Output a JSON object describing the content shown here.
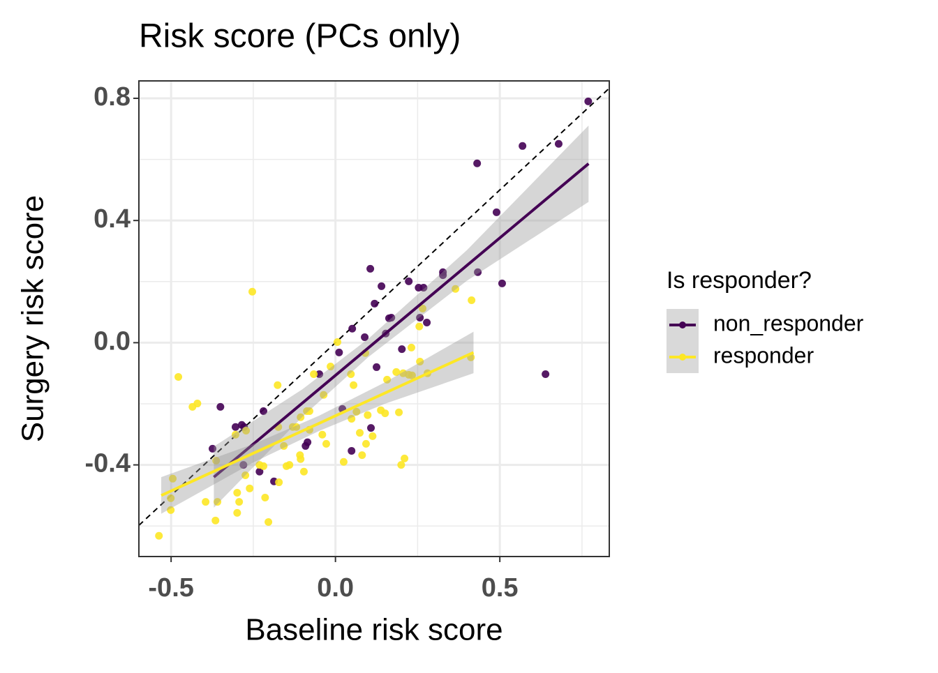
{
  "chart_data": {
    "type": "scatter",
    "title": "Risk score (PCs only)",
    "x_label": "Baseline risk score",
    "y_label": "Surgery risk score",
    "legend_title": "Is responder?",
    "xlim": [
      -0.598,
      0.833
    ],
    "ylim": [
      -0.7,
      0.857
    ],
    "xticks": [
      -0.5,
      {
        "value": 0,
        "label": "0.0"
      },
      0.5
    ],
    "yticks": [
      -0.4,
      {
        "value": 0,
        "label": "0.0"
      },
      0.4,
      0.8
    ],
    "minor_xticks": [
      -0.25,
      0.25,
      0.75
    ],
    "minor_yticks": [
      -0.6,
      -0.2,
      0.2,
      0.6
    ],
    "grid": true,
    "series": [
      {
        "name": "non_responder",
        "color": "#440154",
        "x": [
          0.769,
          0.569,
          0.679,
          0.431,
          0.49,
          0.507,
          0.639,
          0.106,
          0.14,
          0.223,
          0.253,
          0.268,
          0.327,
          0.327,
          0.433,
          0.119,
          0.163,
          0.17,
          0.257,
          0.278,
          0.051,
          0.153,
          0.089,
          0.011,
          0.202,
          0.125,
          -0.049,
          0.021,
          -0.219,
          -0.35,
          -0.304,
          -0.285,
          -0.278,
          -0.374,
          0.108,
          -0.091,
          -0.085,
          -0.28,
          -0.231,
          -0.187,
          0.049
        ],
        "values": [
          0.79,
          0.644,
          0.651,
          0.587,
          0.427,
          0.194,
          -0.103,
          0.242,
          0.185,
          0.201,
          0.18,
          0.18,
          0.231,
          0.221,
          0.231,
          0.128,
          0.08,
          0.082,
          0.082,
          0.066,
          0.046,
          0.03,
          0.018,
          -0.032,
          -0.021,
          -0.08,
          -0.103,
          -0.217,
          -0.224,
          -0.21,
          -0.276,
          -0.269,
          -0.276,
          -0.347,
          -0.279,
          -0.338,
          -0.326,
          -0.4,
          -0.422,
          -0.454,
          -0.354
        ],
        "fit": {
          "x": [
            -0.37,
            -0.1,
            0.1,
            0.4,
            0.77
          ],
          "values": [
            -0.44,
            -0.197,
            -0.017,
            0.253,
            0.586
          ],
          "lower": [
            -0.54,
            -0.242,
            -0.047,
            0.203,
            0.461
          ],
          "upper": [
            -0.34,
            -0.152,
            0.013,
            0.303,
            0.711
          ]
        }
      },
      {
        "name": "responder",
        "color": "#FDE725",
        "x": [
          -0.537,
          -0.501,
          -0.501,
          -0.495,
          -0.478,
          -0.435,
          -0.42,
          -0.395,
          -0.365,
          -0.359,
          -0.363,
          -0.299,
          -0.293,
          -0.299,
          -0.261,
          -0.274,
          -0.253,
          -0.304,
          -0.272,
          -0.231,
          -0.214,
          -0.204,
          -0.219,
          -0.176,
          -0.174,
          -0.172,
          -0.149,
          -0.14,
          -0.157,
          -0.13,
          -0.119,
          -0.108,
          -0.106,
          -0.096,
          -0.106,
          -0.087,
          -0.079,
          -0.079,
          -0.04,
          -0.028,
          -0.066,
          -0.036,
          -0.015,
          0.006,
          0.047,
          0.055,
          0.064,
          0.049,
          0.025,
          0.074,
          0.081,
          0.093,
          0.098,
          0.091,
          0.113,
          0.138,
          0.151,
          0.157,
          0.185,
          0.193,
          0.2,
          0.21,
          0.206,
          0.223,
          0.231,
          0.233,
          0.257,
          0.255,
          0.265,
          0.28,
          0.365,
          0.414,
          0.412
        ],
        "values": [
          -0.632,
          -0.509,
          -0.548,
          -0.445,
          -0.112,
          -0.21,
          -0.199,
          -0.521,
          -0.582,
          -0.521,
          -0.386,
          -0.491,
          -0.521,
          -0.557,
          -0.477,
          -0.434,
          0.167,
          -0.301,
          -0.288,
          -0.4,
          -0.507,
          -0.587,
          -0.404,
          -0.139,
          -0.276,
          -0.457,
          -0.404,
          -0.4,
          -0.338,
          -0.276,
          -0.276,
          -0.368,
          -0.381,
          -0.422,
          -0.244,
          -0.224,
          -0.285,
          -0.224,
          -0.301,
          -0.331,
          -0.103,
          -0.171,
          -0.078,
          0.002,
          -0.103,
          -0.139,
          -0.226,
          -0.249,
          -0.39,
          -0.295,
          -0.368,
          -0.331,
          -0.237,
          -0.034,
          -0.306,
          -0.221,
          -0.231,
          -0.121,
          -0.096,
          -0.228,
          -0.4,
          -0.379,
          -0.1,
          -0.105,
          -0.016,
          -0.107,
          -0.062,
          0.053,
          0.112,
          -0.1,
          0.176,
          0.139,
          -0.048
        ],
        "fit": {
          "x": [
            -0.53,
            -0.25,
            -0.05,
            0.15,
            0.42
          ],
          "values": [
            -0.5,
            -0.362,
            -0.264,
            -0.165,
            -0.032
          ],
          "lower": [
            -0.56,
            -0.392,
            -0.289,
            -0.2,
            -0.1
          ],
          "upper": [
            -0.44,
            -0.332,
            -0.239,
            -0.13,
            0.036
          ]
        }
      }
    ]
  }
}
